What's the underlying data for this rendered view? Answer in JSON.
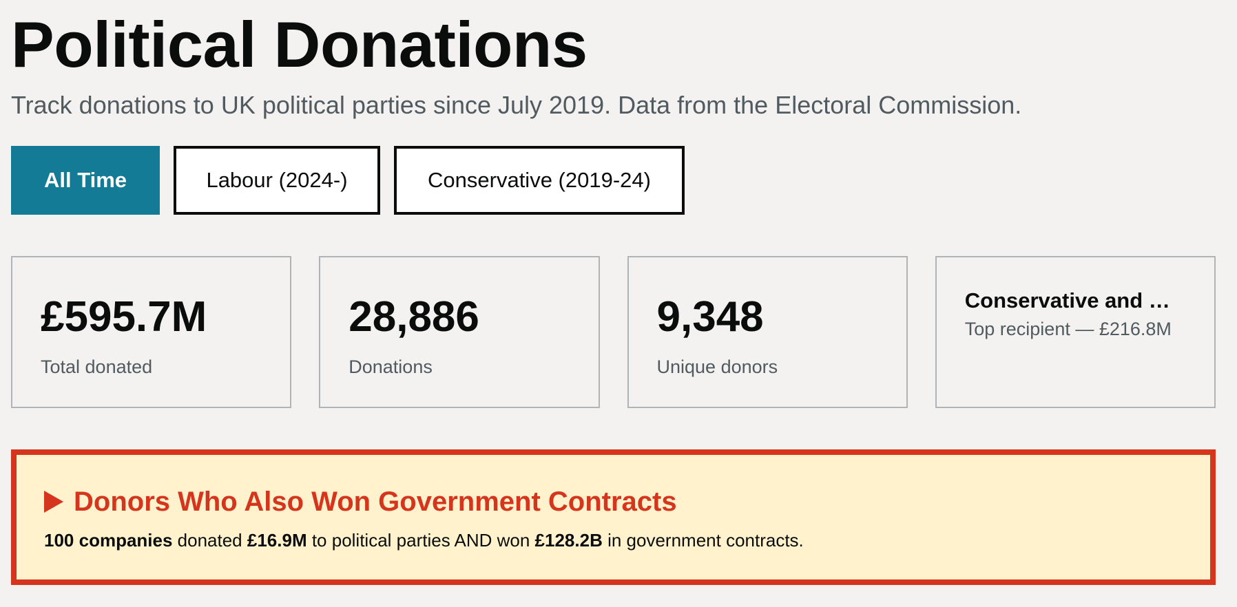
{
  "header": {
    "title": "Political Donations",
    "subtitle": "Track donations to UK political parties since July 2019. Data from the Electoral Commission."
  },
  "filters": {
    "all_time": "All Time",
    "labour": "Labour (2024-)",
    "conservative": "Conservative (2019-24)",
    "active": "All Time"
  },
  "stats": {
    "total_donated": {
      "value": "£595.7M",
      "label": "Total donated"
    },
    "donations": {
      "value": "28,886",
      "label": "Donations"
    },
    "unique_donors": {
      "value": "9,348",
      "label": "Unique donors"
    },
    "top_recipient": {
      "name": "Conservative and …",
      "detail": "Top recipient — £216.8M"
    }
  },
  "alert": {
    "heading": "Donors Who Also Won Government Contracts",
    "companies": "100 companies",
    "text_1": " donated ",
    "donated_amount": "£16.9M",
    "text_2": " to political parties AND won ",
    "contracts_amount": "£128.2B",
    "text_3": " in government contracts."
  },
  "colors": {
    "accent": "#137b95",
    "alert_red": "#d4351c",
    "alert_bg": "#fff2cc",
    "background": "#f3f2f1"
  },
  "icons": {
    "alert_toggle": "triangle-right-icon"
  }
}
